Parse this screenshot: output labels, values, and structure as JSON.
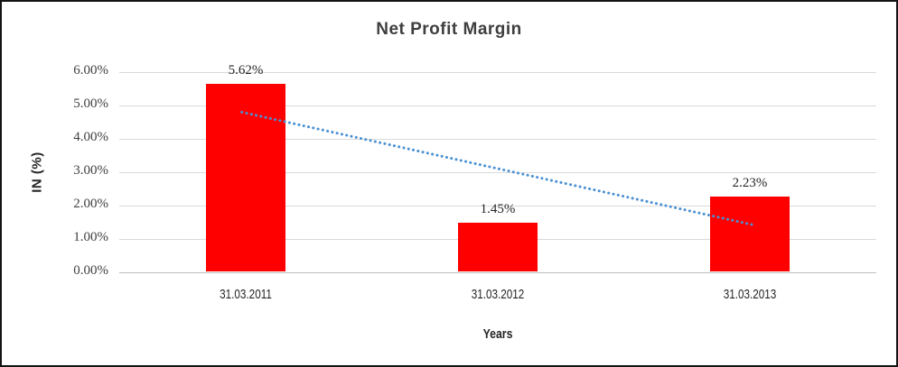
{
  "chart_data": {
    "type": "bar",
    "title": "Net Profit Margin",
    "xlabel": "Years",
    "ylabel": "IN (%)",
    "categories": [
      "31.03.2011",
      "31.03.2012",
      "31.03.2013"
    ],
    "values": [
      5.62,
      1.45,
      2.23
    ],
    "data_labels": [
      "5.62%",
      "1.45%",
      "2.23%"
    ],
    "yticks": [
      "6.00%",
      "5.00%",
      "4.00%",
      "3.00%",
      "2.00%",
      "1.00%",
      "0.00%"
    ],
    "ylim": [
      0,
      6
    ],
    "grid": true,
    "legend": "none",
    "bar_color": "#FF0000",
    "trendline": {
      "type": "linear",
      "style": "dotted",
      "color": "#4A90D2",
      "start_value": 4.8,
      "end_value": 1.43
    }
  },
  "colors": {
    "bar": "#FF0000",
    "trendline": "#4A90D2",
    "gridline": "#D9D9D9",
    "axis_line": "#BFBFBF",
    "title_text": "#3F3F3F",
    "label_text": "#262626",
    "frame_border": "#141414",
    "background": "#FFFFFF"
  }
}
